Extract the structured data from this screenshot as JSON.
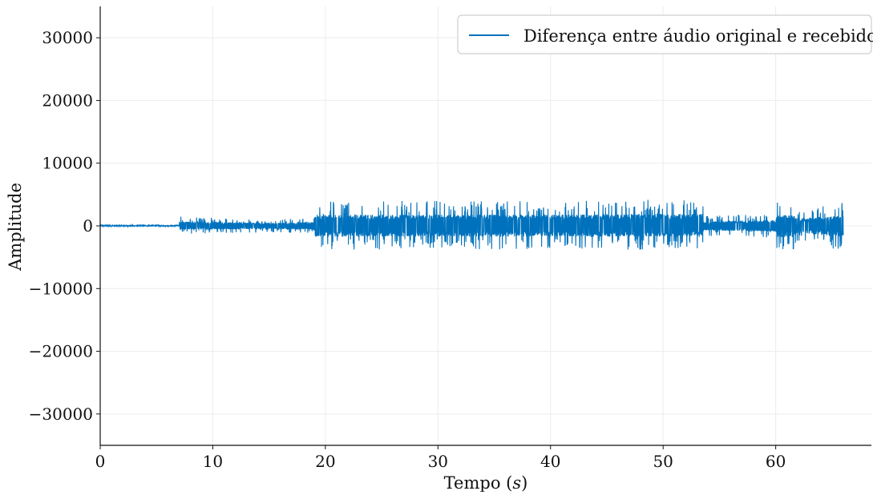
{
  "chart_data": {
    "type": "line",
    "title": "",
    "xlabel": "Tempo (s)",
    "ylabel": "Amplitude",
    "xlim": [
      0,
      68.5
    ],
    "ylim": [
      -35000,
      35000
    ],
    "x_ticks": [
      0,
      10,
      20,
      30,
      40,
      50,
      60
    ],
    "x_tick_labels": [
      "0",
      "10",
      "20",
      "30",
      "40",
      "50",
      "60"
    ],
    "y_ticks": [
      30000,
      20000,
      10000,
      0,
      -10000,
      -20000,
      -30000
    ],
    "y_tick_labels": [
      "30000",
      "20000",
      "10000",
      "0",
      "−10000",
      "−20000",
      "−30000"
    ],
    "grid": true,
    "legend_position": "top-right",
    "series": [
      {
        "name": "Diferença entre áudio original e recebido",
        "color": "#0072bd",
        "envelope": {
          "time": [
            0.0,
            7.0,
            7.1,
            12.0,
            15.0,
            19.0,
            19.1,
            40.0,
            53.5,
            53.6,
            60.0,
            60.1,
            61.5,
            62.0,
            66.0
          ],
          "max": [
            250,
            250,
            1500,
            1200,
            1000,
            1300,
            4000,
            4000,
            4300,
            1600,
            2000,
            3800,
            3900,
            2500,
            3800
          ],
          "min": [
            -150,
            -150,
            -1300,
            -1200,
            -1000,
            -1300,
            -3800,
            -3800,
            -3800,
            -1600,
            -2000,
            -4000,
            -4000,
            -2500,
            -4000
          ]
        }
      }
    ]
  }
}
